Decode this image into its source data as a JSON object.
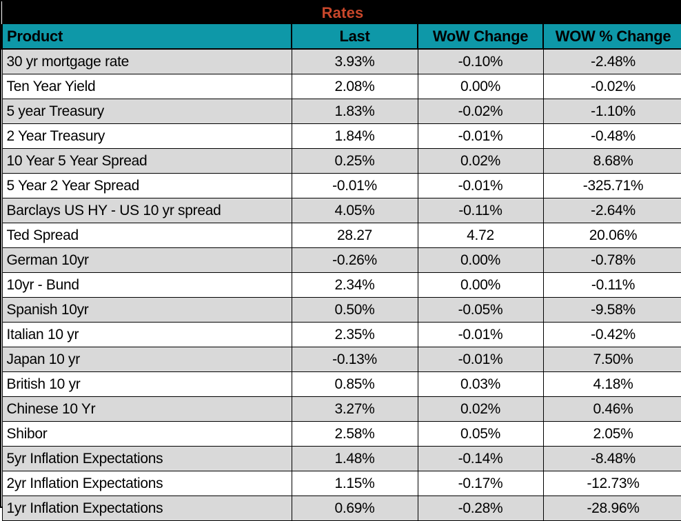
{
  "title": "Rates",
  "colors": {
    "title_bg": "#000000",
    "title_text": "#C9472B",
    "header_bg": "#0E98A8",
    "header_text": "#000000",
    "row_alt": "#D9D9D9",
    "row_bg": "#FFFFFF",
    "border": "#000000"
  },
  "chart_data": {
    "type": "table",
    "title": "Rates",
    "columns": [
      "Product",
      "Last",
      "WoW Change",
      "WOW % Change"
    ],
    "rows": [
      {
        "product": "30 yr mortgage rate",
        "last": "3.93%",
        "wow_change": "-0.10%",
        "wow_pct_change": "-2.48%"
      },
      {
        "product": "Ten Year Yield",
        "last": "2.08%",
        "wow_change": "0.00%",
        "wow_pct_change": "-0.02%"
      },
      {
        "product": "5 year Treasury",
        "last": "1.83%",
        "wow_change": "-0.02%",
        "wow_pct_change": "-1.10%"
      },
      {
        "product": "2 Year Treasury",
        "last": "1.84%",
        "wow_change": "-0.01%",
        "wow_pct_change": "-0.48%"
      },
      {
        "product": "10 Year 5 Year Spread",
        "last": "0.25%",
        "wow_change": "0.02%",
        "wow_pct_change": "8.68%"
      },
      {
        "product": "5 Year 2 Year Spread",
        "last": "-0.01%",
        "wow_change": "-0.01%",
        "wow_pct_change": "-325.71%"
      },
      {
        "product": "Barclays US HY - US 10 yr spread",
        "last": "4.05%",
        "wow_change": "-0.11%",
        "wow_pct_change": "-2.64%"
      },
      {
        "product": "Ted Spread",
        "last": "28.27",
        "wow_change": "4.72",
        "wow_pct_change": "20.06%"
      },
      {
        "product": "German 10yr",
        "last": "-0.26%",
        "wow_change": "0.00%",
        "wow_pct_change": "-0.78%"
      },
      {
        "product": "10yr - Bund",
        "last": "2.34%",
        "wow_change": "0.00%",
        "wow_pct_change": "-0.11%"
      },
      {
        "product": "Spanish 10yr",
        "last": "0.50%",
        "wow_change": "-0.05%",
        "wow_pct_change": "-9.58%"
      },
      {
        "product": "Italian 10 yr",
        "last": "2.35%",
        "wow_change": "-0.01%",
        "wow_pct_change": "-0.42%"
      },
      {
        "product": "Japan 10 yr",
        "last": "-0.13%",
        "wow_change": "-0.01%",
        "wow_pct_change": "7.50%"
      },
      {
        "product": "British 10 yr",
        "last": "0.85%",
        "wow_change": "0.03%",
        "wow_pct_change": "4.18%"
      },
      {
        "product": "Chinese 10 Yr",
        "last": "3.27%",
        "wow_change": "0.02%",
        "wow_pct_change": "0.46%"
      },
      {
        "product": "Shibor",
        "last": "2.58%",
        "wow_change": "0.05%",
        "wow_pct_change": "2.05%"
      },
      {
        "product": "5yr Inflation Expectations",
        "last": "1.48%",
        "wow_change": "-0.14%",
        "wow_pct_change": "-8.48%"
      },
      {
        "product": "2yr Inflation Expectations",
        "last": "1.15%",
        "wow_change": "-0.17%",
        "wow_pct_change": "-12.73%"
      },
      {
        "product": "1yr Inflation Expectations",
        "last": "0.69%",
        "wow_change": "-0.28%",
        "wow_pct_change": "-28.96%"
      }
    ]
  }
}
